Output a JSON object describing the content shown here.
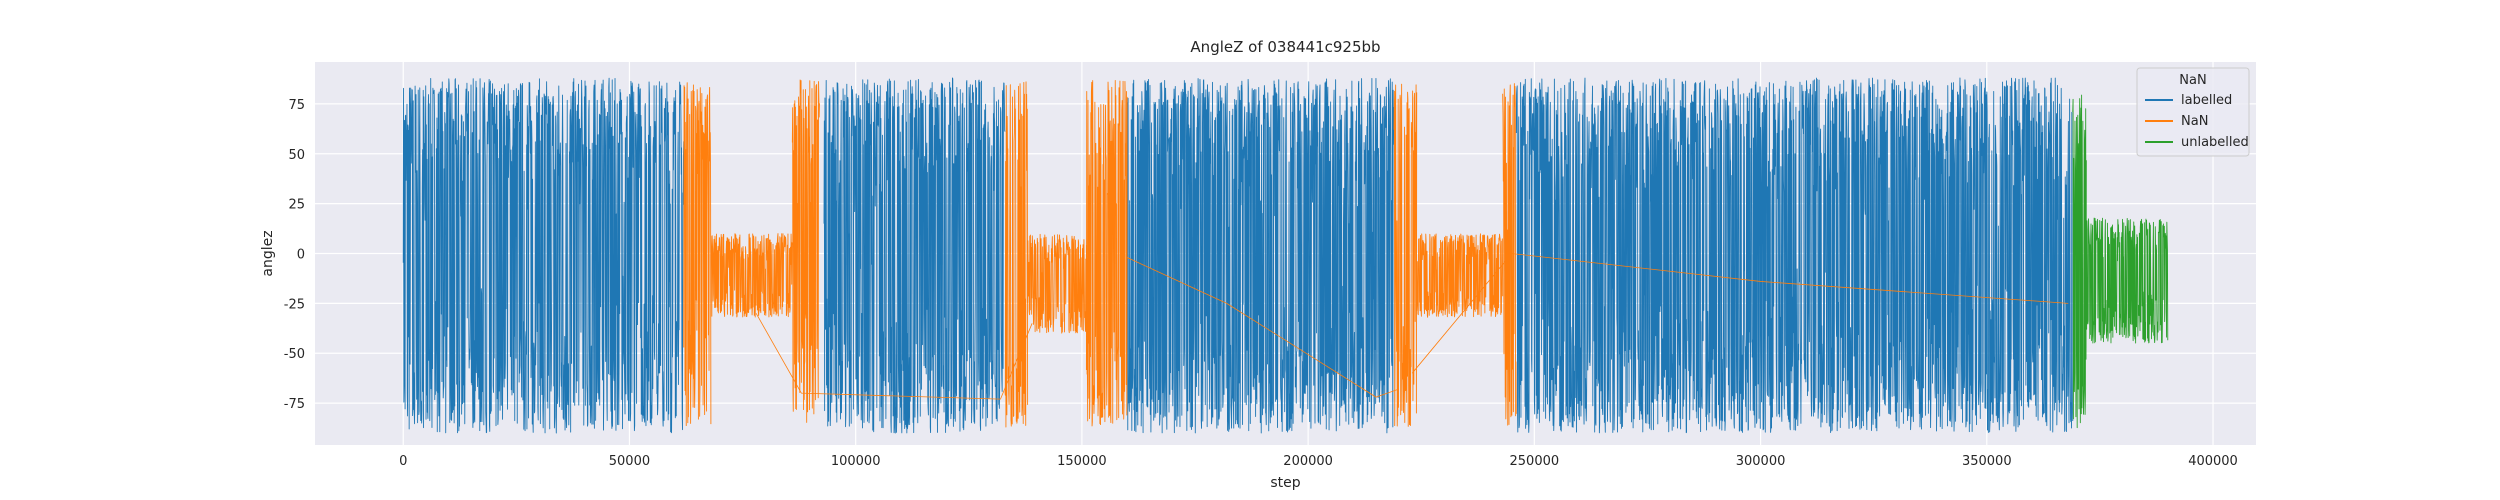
{
  "chart_data": {
    "type": "line",
    "title": "AngleZ of 038441c925bb",
    "xlabel": "step",
    "ylabel": "anglez",
    "xlim": [
      -19500,
      409500
    ],
    "ylim": [
      -96,
      96
    ],
    "x_ticks": [
      0,
      50000,
      100000,
      150000,
      200000,
      250000,
      300000,
      350000,
      400000
    ],
    "y_ticks": [
      -75,
      -50,
      -25,
      0,
      25,
      50,
      75
    ],
    "grid": true,
    "legend": {
      "title": "NaN",
      "placement": "top-right"
    },
    "series": [
      {
        "name": "labelled",
        "color": "#1f77b4",
        "segments": [
          {
            "x_range": [
              0,
              62000
            ],
            "y_range": [
              -90,
              88
            ]
          },
          {
            "x_range": [
              93000,
              133000
            ],
            "y_range": [
              -90,
              88
            ]
          },
          {
            "x_range": [
              160000,
              219000
            ],
            "y_range": [
              -90,
              88
            ]
          },
          {
            "x_range": [
              246000,
              369000
            ],
            "y_range": [
              -90,
              88
            ]
          }
        ]
      },
      {
        "name": "NaN",
        "color": "#ff7f0e",
        "segments": [
          {
            "x_range": [
              62000,
              68000
            ],
            "y_range": [
              -87,
              87
            ]
          },
          {
            "x_range": [
              68000,
              86000
            ],
            "y_range": [
              -32,
              10
            ]
          },
          {
            "x_range": [
              86000,
              92000
            ],
            "y_range": [
              -87,
              87
            ]
          },
          {
            "x_range": [
              133000,
              138000
            ],
            "y_range": [
              -87,
              87
            ]
          },
          {
            "x_range": [
              138000,
              151000
            ],
            "y_range": [
              -40,
              10
            ]
          },
          {
            "x_range": [
              151000,
              160000
            ],
            "y_range": [
              -87,
              87
            ]
          },
          {
            "x_range": [
              219000,
              224000
            ],
            "y_range": [
              -87,
              88
            ]
          },
          {
            "x_range": [
              224000,
              243000
            ],
            "y_range": [
              -32,
              10
            ]
          },
          {
            "x_range": [
              243000,
              246000
            ],
            "y_range": [
              -87,
              87
            ]
          }
        ],
        "connectors": [
          [
            [
              78000,
              -30
            ],
            [
              88000,
              -70
            ],
            [
              132000,
              -73
            ],
            [
              139000,
              -35
            ]
          ],
          [
            [
              160000,
              -2
            ],
            [
              182000,
              -25
            ],
            [
              215000,
              -72
            ],
            [
              220000,
              -68
            ]
          ],
          [
            [
              223000,
              -60
            ],
            [
              245000,
              0
            ],
            [
              300000,
              -14
            ],
            [
              368000,
              -25
            ]
          ]
        ]
      },
      {
        "name": "unlabelled",
        "color": "#2ca02c",
        "segments": [
          {
            "x_range": [
              369000,
              372000
            ],
            "y_range": [
              -88,
              80
            ]
          },
          {
            "x_range": [
              372000,
              390000
            ],
            "y_range": [
              -45,
              18
            ]
          }
        ]
      }
    ]
  }
}
